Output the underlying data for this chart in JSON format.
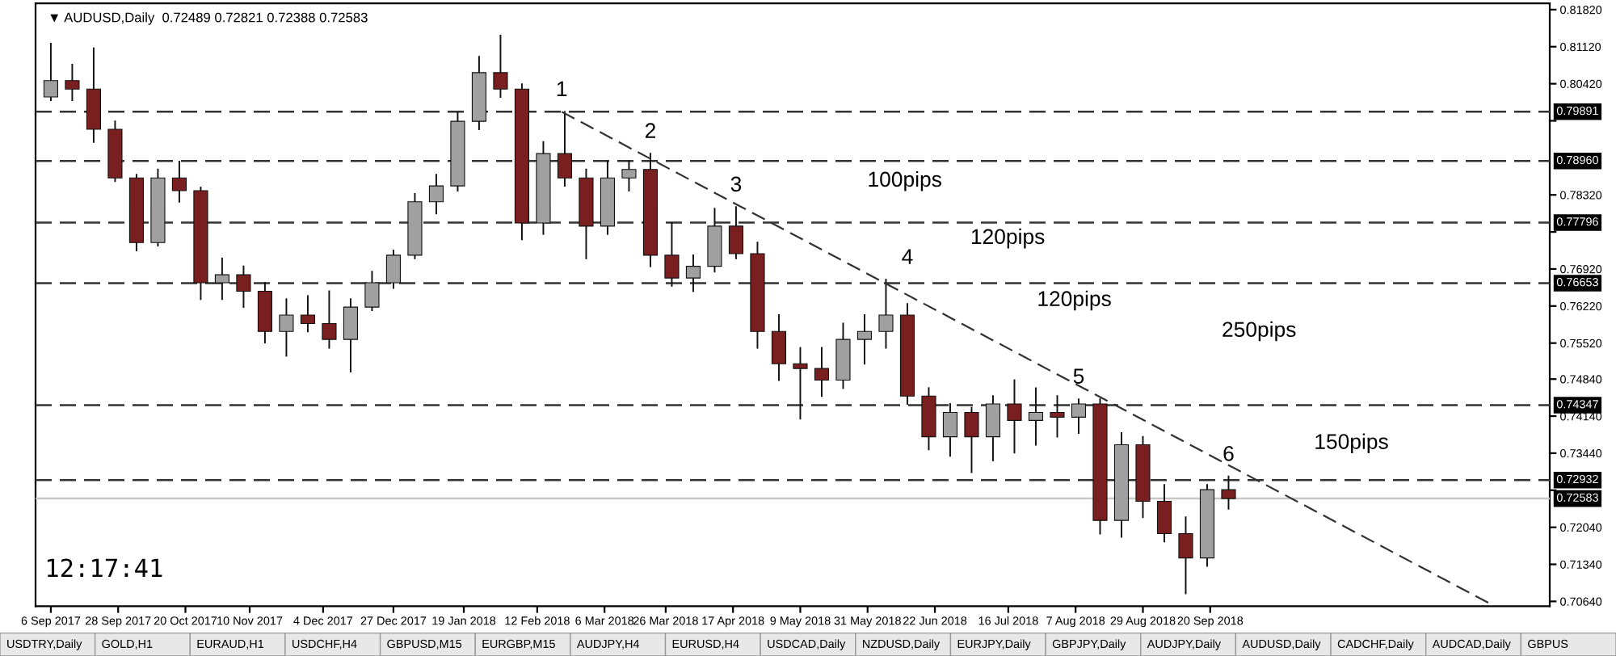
{
  "chart_data": {
    "type": "candlestick",
    "title": "▼ AUDUSD,Daily  0.72489 0.72821 0.72388 0.72583",
    "xlim": [
      "2017-09-01",
      "2019-01-09"
    ],
    "ylim": [
      0.7055,
      0.8194
    ],
    "xticks": [
      {
        "value": "2017-09-06",
        "label": "6 Sep 2017"
      },
      {
        "value": "2017-09-28",
        "label": "28 Sep 2017"
      },
      {
        "value": "2017-10-20",
        "label": "20 Oct 2017"
      },
      {
        "value": "2017-11-10",
        "label": "10 Nov 2017"
      },
      {
        "value": "2017-12-04",
        "label": "4 Dec 2017"
      },
      {
        "value": "2017-12-27",
        "label": "27 Dec 2017"
      },
      {
        "value": "2018-01-19",
        "label": "19 Jan 2018"
      },
      {
        "value": "2018-02-12",
        "label": "12 Feb 2018"
      },
      {
        "value": "2018-03-06",
        "label": "6 Mar 2018"
      },
      {
        "value": "2018-03-26",
        "label": "26 Mar 2018"
      },
      {
        "value": "2018-04-17",
        "label": "17 Apr 2018"
      },
      {
        "value": "2018-05-09",
        "label": "9 May 2018"
      },
      {
        "value": "2018-05-31",
        "label": "31 May 2018"
      },
      {
        "value": "2018-06-22",
        "label": "22 Jun 2018"
      },
      {
        "value": "2018-07-16",
        "label": "16 Jul 2018"
      },
      {
        "value": "2018-08-07",
        "label": "7 Aug 2018"
      },
      {
        "value": "2018-08-29",
        "label": "29 Aug 2018"
      },
      {
        "value": "2018-09-20",
        "label": "20 Sep 2018"
      }
    ],
    "yticks": [
      {
        "value": 0.8182,
        "label": "0.81820"
      },
      {
        "value": 0.8112,
        "label": "0.81120"
      },
      {
        "value": 0.8042,
        "label": "0.80420"
      },
      {
        "value": 0.7972,
        "label": null
      },
      {
        "value": 0.7832,
        "label": "0.78320"
      },
      {
        "value": 0.7762,
        "label": null
      },
      {
        "value": 0.7692,
        "label": "0.76920"
      },
      {
        "value": 0.7622,
        "label": "0.76220"
      },
      {
        "value": 0.7552,
        "label": "0.75520"
      },
      {
        "value": 0.7484,
        "label": "0.74840"
      },
      {
        "value": 0.7414,
        "label": "0.74140"
      },
      {
        "value": 0.7344,
        "label": "0.73440"
      },
      {
        "value": 0.7274,
        "label": null
      },
      {
        "value": 0.7204,
        "label": "0.72040"
      },
      {
        "value": 0.7134,
        "label": "0.71340"
      },
      {
        "value": 0.7064,
        "label": "0.70640"
      }
    ],
    "grid": false,
    "series": [
      {
        "x": [
          "2017-09-06",
          "2017-09-13",
          "2017-09-20",
          "2017-09-27",
          "2017-10-04",
          "2017-10-11",
          "2017-10-18",
          "2017-10-25",
          "2017-11-01",
          "2017-11-08",
          "2017-11-15",
          "2017-11-22",
          "2017-11-29",
          "2017-12-06",
          "2017-12-13",
          "2017-12-20",
          "2017-12-27",
          "2018-01-03",
          "2018-01-10",
          "2018-01-17",
          "2018-01-24",
          "2018-01-31",
          "2018-02-07",
          "2018-02-14",
          "2018-02-21",
          "2018-02-28",
          "2018-03-07",
          "2018-03-14",
          "2018-03-21",
          "2018-03-28",
          "2018-04-04",
          "2018-04-11",
          "2018-04-18",
          "2018-04-25",
          "2018-05-02",
          "2018-05-09",
          "2018-05-16",
          "2018-05-23",
          "2018-05-30",
          "2018-06-06",
          "2018-06-13",
          "2018-06-20",
          "2018-06-27",
          "2018-07-04",
          "2018-07-11",
          "2018-07-18",
          "2018-07-25",
          "2018-08-01",
          "2018-08-08",
          "2018-08-15",
          "2018-08-22",
          "2018-08-29",
          "2018-09-05",
          "2018-09-12",
          "2018-09-19",
          "2018-09-26"
        ],
        "ohlc": [
          [
            0.8017,
            0.8118,
            0.8011,
            0.8048
          ],
          [
            0.8048,
            0.8078,
            0.8011,
            0.8032
          ],
          [
            0.8032,
            0.8109,
            0.7932,
            0.7956
          ],
          [
            0.7956,
            0.7971,
            0.7858,
            0.7864
          ],
          [
            0.7864,
            0.787,
            0.7727,
            0.7742
          ],
          [
            0.7742,
            0.788,
            0.7736,
            0.7864
          ],
          [
            0.7864,
            0.7895,
            0.7819,
            0.784
          ],
          [
            0.784,
            0.7846,
            0.7635,
            0.7666
          ],
          [
            0.7666,
            0.7712,
            0.7635,
            0.7681
          ],
          [
            0.7681,
            0.7697,
            0.762,
            0.765
          ],
          [
            0.765,
            0.7666,
            0.7553,
            0.7574
          ],
          [
            0.7574,
            0.7635,
            0.7528,
            0.7605
          ],
          [
            0.7605,
            0.7641,
            0.7574,
            0.7589
          ],
          [
            0.7589,
            0.765,
            0.7543,
            0.7559
          ],
          [
            0.7559,
            0.7635,
            0.7498,
            0.762
          ],
          [
            0.762,
            0.7687,
            0.7614,
            0.7666
          ],
          [
            0.7666,
            0.7727,
            0.7656,
            0.7718
          ],
          [
            0.7718,
            0.7834,
            0.7712,
            0.7819
          ],
          [
            0.7819,
            0.787,
            0.7797,
            0.7849
          ],
          [
            0.7849,
            0.7987,
            0.784,
            0.7971
          ],
          [
            0.7971,
            0.8093,
            0.7956,
            0.8063
          ],
          [
            0.8063,
            0.8133,
            0.8017,
            0.8032
          ],
          [
            0.8032,
            0.8041,
            0.7748,
            0.7779
          ],
          [
            0.7779,
            0.7932,
            0.7758,
            0.791
          ],
          [
            0.791,
            0.7989,
            0.7849,
            0.7864
          ],
          [
            0.7864,
            0.788,
            0.7712,
            0.7773
          ],
          [
            0.7773,
            0.7895,
            0.7758,
            0.7864
          ],
          [
            0.7864,
            0.7895,
            0.784,
            0.788
          ],
          [
            0.788,
            0.791,
            0.7697,
            0.7718
          ],
          [
            0.7718,
            0.7779,
            0.766,
            0.7675
          ],
          [
            0.7675,
            0.7718,
            0.765,
            0.7697
          ],
          [
            0.7697,
            0.7806,
            0.7687,
            0.7773
          ],
          [
            0.7773,
            0.7809,
            0.7712,
            0.7721
          ],
          [
            0.7721,
            0.7742,
            0.7543,
            0.7574
          ],
          [
            0.7574,
            0.7605,
            0.7482,
            0.7513
          ],
          [
            0.7513,
            0.7543,
            0.7409,
            0.7504
          ],
          [
            0.7504,
            0.7543,
            0.7452,
            0.7482
          ],
          [
            0.7482,
            0.7589,
            0.7467,
            0.7559
          ],
          [
            0.7559,
            0.7605,
            0.7513,
            0.7574
          ],
          [
            0.7574,
            0.7672,
            0.7543,
            0.7605
          ],
          [
            0.7605,
            0.7626,
            0.7437,
            0.7452
          ],
          [
            0.7452,
            0.7467,
            0.7351,
            0.7375
          ],
          [
            0.7375,
            0.7437,
            0.7339,
            0.7421
          ],
          [
            0.7421,
            0.743,
            0.7308,
            0.7375
          ],
          [
            0.7375,
            0.7452,
            0.733,
            0.7437
          ],
          [
            0.7437,
            0.7482,
            0.7345,
            0.7406
          ],
          [
            0.7406,
            0.7467,
            0.736,
            0.7421
          ],
          [
            0.7421,
            0.7452,
            0.7375,
            0.7412
          ],
          [
            0.7412,
            0.7446,
            0.7382,
            0.7437
          ],
          [
            0.7437,
            0.7446,
            0.7192,
            0.7217
          ],
          [
            0.7217,
            0.7382,
            0.7186,
            0.736
          ],
          [
            0.736,
            0.7375,
            0.7223,
            0.7253
          ],
          [
            0.7253,
            0.7284,
            0.7177,
            0.7192
          ],
          [
            0.7192,
            0.7223,
            0.7079,
            0.7146
          ],
          [
            0.7146,
            0.7284,
            0.7131,
            0.7275
          ],
          [
            0.7275,
            0.73,
            0.7239,
            0.72583
          ]
        ],
        "colors": [
          "#a0a0a0",
          "#7a1f1f",
          "#7a1f1f",
          "#7a1f1f",
          "#7a1f1f",
          "#a0a0a0",
          "#7a1f1f",
          "#7a1f1f",
          "#a0a0a0",
          "#7a1f1f",
          "#7a1f1f",
          "#a0a0a0",
          "#7a1f1f",
          "#7a1f1f",
          "#a0a0a0",
          "#a0a0a0",
          "#a0a0a0",
          "#a0a0a0",
          "#a0a0a0",
          "#a0a0a0",
          "#a0a0a0",
          "#7a1f1f",
          "#7a1f1f",
          "#a0a0a0",
          "#7a1f1f",
          "#7a1f1f",
          "#a0a0a0",
          "#a0a0a0",
          "#7a1f1f",
          "#7a1f1f",
          "#a0a0a0",
          "#a0a0a0",
          "#7a1f1f",
          "#7a1f1f",
          "#7a1f1f",
          "#7a1f1f",
          "#7a1f1f",
          "#a0a0a0",
          "#a0a0a0",
          "#a0a0a0",
          "#7a1f1f",
          "#7a1f1f",
          "#a0a0a0",
          "#7a1f1f",
          "#a0a0a0",
          "#7a1f1f",
          "#a0a0a0",
          "#7a1f1f",
          "#a0a0a0",
          "#7a1f1f",
          "#a0a0a0",
          "#7a1f1f",
          "#7a1f1f",
          "#7a1f1f",
          "#a0a0a0",
          "#7a1f1f"
        ]
      },
      {
        "type": "line",
        "x": [
          "2018-02-20",
          "2018-12-22"
        ],
        "values": [
          0.7989,
          0.7055
        ],
        "color": "#333333",
        "line_style": "dashed"
      }
    ],
    "ref_lines": [
      {
        "axis": "y",
        "value": 0.79891,
        "label": "0.79891",
        "color": "#333333",
        "line_style": "dashed"
      },
      {
        "axis": "y",
        "value": 0.7896,
        "label": "0.78960",
        "color": "#333333",
        "line_style": "dashed"
      },
      {
        "axis": "y",
        "value": 0.77796,
        "label": "0.77796",
        "color": "#333333",
        "line_style": "dashed"
      },
      {
        "axis": "y",
        "value": 0.76653,
        "label": "0.76653",
        "color": "#333333",
        "line_style": "dashed"
      },
      {
        "axis": "y",
        "value": 0.74347,
        "label": "0.74347",
        "color": "#333333",
        "line_style": "dashed"
      },
      {
        "axis": "y",
        "value": 0.72932,
        "label": "0.72932",
        "color": "#333333",
        "line_style": "dashed"
      },
      {
        "axis": "y",
        "value": 0.72583,
        "label": "0.72583",
        "color": "#c8c8c8",
        "line_style": "solid"
      }
    ],
    "annotations": [
      {
        "text": "1",
        "x": "2018-02-20",
        "y": 0.7989
      },
      {
        "text": "2",
        "x": "2018-03-21",
        "y": 0.791
      },
      {
        "text": "3",
        "x": "2018-04-18",
        "y": 0.7809
      },
      {
        "text": "4",
        "x": "2018-06-13",
        "y": 0.7672
      },
      {
        "text": "5",
        "x": "2018-08-08",
        "y": 0.7446
      },
      {
        "text": "6",
        "x": "2018-09-26",
        "y": 0.73
      },
      "100pips",
      "120pips",
      "120pips",
      "250pips",
      "150pips",
      "12:17:41",
      "USDTRY,Daily",
      "GOLD,H1",
      "EURAUD,H1",
      "USDCHF,H4",
      "GBPUSD,M15",
      "EURGBP,M15",
      "AUDJPY,H4",
      "EURUSD,H4",
      "USDCAD,Daily",
      "NZDUSD,Daily",
      "EURJPY,Daily",
      "GBPJPY,Daily",
      "AUDJPY,Daily",
      "AUDUSD,Daily",
      "CADCHF,Daily",
      "AUDCAD,Daily",
      "GBPUS"
    ]
  }
}
